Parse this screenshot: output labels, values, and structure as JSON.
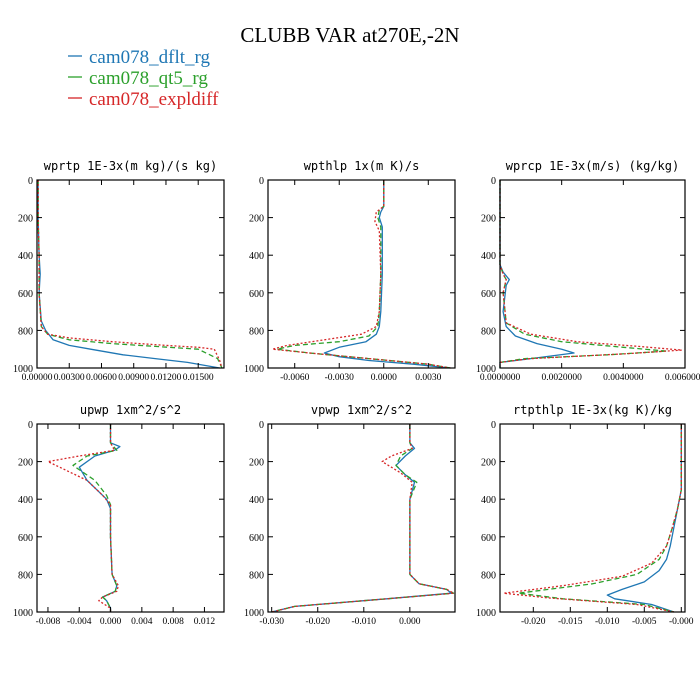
{
  "title": "CLUBB VAR at270E,-2N",
  "legend": [
    {
      "name": "cam078_dflt_rg",
      "color": "#1f77b4",
      "dash": "solid"
    },
    {
      "name": "cam078_qt5_rg",
      "color": "#2ca02c",
      "dash": "dash"
    },
    {
      "name": "cam078_expldiff",
      "color": "#d62728",
      "dash": "dot"
    }
  ],
  "chart_data": [
    {
      "type": "line",
      "title": "wprtp  1E-3x(m kg)/(s kg)",
      "xlim": [
        0.0,
        0.0174
      ],
      "ylim": [
        1000,
        0
      ],
      "xticks": [
        0,
        0.003,
        0.006,
        0.009,
        0.012,
        0.015
      ],
      "xtick_labels": [
        "0.00000",
        "0.00300",
        "0.00600",
        "0.00900",
        "0.01200",
        "0.01500"
      ],
      "yticks": [
        0,
        200,
        400,
        600,
        800,
        1000
      ],
      "ytick_labels": [
        "0",
        "200",
        "400",
        "600",
        "800",
        "1000"
      ],
      "series": [
        {
          "name": "cam078_dflt_rg",
          "x": [
            0.0001,
            0.0001,
            0.0002,
            0.0003,
            0.0002,
            0.0004,
            0.0008,
            0.0015,
            0.003,
            0.005,
            0.008,
            0.011,
            0.014,
            0.016,
            0.017
          ],
          "y": [
            0,
            200,
            400,
            500,
            600,
            750,
            800,
            850,
            880,
            900,
            930,
            950,
            970,
            990,
            1000
          ]
        },
        {
          "name": "cam078_qt5_rg",
          "x": [
            0.0001,
            0.0001,
            0.0002,
            0.0002,
            0.0002,
            0.0004,
            0.001,
            0.003,
            0.007,
            0.011,
            0.015,
            0.0168,
            0.0172
          ],
          "y": [
            0,
            200,
            400,
            500,
            600,
            780,
            820,
            850,
            870,
            885,
            900,
            950,
            1000
          ]
        },
        {
          "name": "cam078_expldiff",
          "x": [
            0.0001,
            0.0001,
            0.0002,
            0.0002,
            0.0002,
            0.0004,
            0.001,
            0.003,
            0.007,
            0.012,
            0.015,
            0.0165,
            0.017,
            0.0172
          ],
          "y": [
            0,
            200,
            400,
            500,
            600,
            780,
            820,
            840,
            860,
            880,
            890,
            900,
            960,
            1000
          ]
        }
      ]
    },
    {
      "type": "line",
      "title": "wpthlp  1x(m K)/s",
      "xlim": [
        -0.0078,
        0.0048
      ],
      "ylim": [
        1000,
        0
      ],
      "xticks": [
        -0.006,
        -0.003,
        0.0,
        0.003
      ],
      "xtick_labels": [
        "-0.0060",
        "-0.0030",
        "0.0000",
        "0.0030"
      ],
      "yticks": [
        0,
        200,
        400,
        600,
        800,
        1000
      ],
      "ytick_labels": [
        "0",
        "200",
        "400",
        "600",
        "800",
        "1000"
      ],
      "series": [
        {
          "name": "cam078_dflt_rg",
          "x": [
            0.0,
            0.0,
            -0.0002,
            -0.0003,
            -0.0001,
            -0.0001,
            -0.0002,
            -0.0003,
            -0.0005,
            -0.0012,
            -0.003,
            -0.004,
            -0.003,
            -0.001,
            0.002,
            0.0045
          ],
          "y": [
            0,
            140,
            170,
            200,
            250,
            500,
            700,
            780,
            820,
            860,
            890,
            920,
            940,
            960,
            980,
            1000
          ]
        },
        {
          "name": "cam078_qt5_rg",
          "x": [
            0.0,
            0.0,
            -0.0003,
            -0.0004,
            -0.0002,
            -0.0002,
            -0.0003,
            -0.0004,
            -0.001,
            -0.003,
            -0.006,
            -0.0072,
            -0.005,
            -0.001,
            0.003,
            0.0045
          ],
          "y": [
            0,
            140,
            160,
            200,
            250,
            500,
            700,
            780,
            830,
            860,
            880,
            900,
            920,
            950,
            980,
            1000
          ]
        },
        {
          "name": "cam078_expldiff",
          "x": [
            0.0,
            0.0,
            -0.0005,
            -0.0006,
            -0.0003,
            -0.0002,
            -0.0003,
            -0.0005,
            -0.0015,
            -0.004,
            -0.0065,
            -0.0075,
            -0.005,
            -0.001,
            0.003,
            0.0045
          ],
          "y": [
            0,
            140,
            170,
            220,
            270,
            500,
            700,
            780,
            820,
            850,
            880,
            900,
            920,
            950,
            980,
            1000
          ]
        }
      ]
    },
    {
      "type": "line",
      "title": "wprcp  1E-3x(m/s) (kg/kg)",
      "xlim": [
        0.0,
        0.006
      ],
      "ylim": [
        1000,
        0
      ],
      "xticks": [
        0.0,
        0.002,
        0.004,
        0.006
      ],
      "xtick_labels": [
        "0.0000000",
        "0.0020000",
        "0.0040000",
        "0.0060000"
      ],
      "yticks": [
        0,
        200,
        400,
        600,
        800,
        1000
      ],
      "ytick_labels": [
        "0",
        "200",
        "400",
        "600",
        "800",
        "1000"
      ],
      "series": [
        {
          "name": "cam078_dflt_rg",
          "x": [
            0.0,
            0.0,
            0.0001,
            0.0003,
            0.0002,
            0.0001,
            0.0002,
            0.0005,
            0.0012,
            0.002,
            0.0024,
            0.001,
            0.0,
            0.0
          ],
          "y": [
            0,
            450,
            490,
            530,
            560,
            700,
            780,
            830,
            870,
            900,
            920,
            950,
            970,
            1000
          ]
        },
        {
          "name": "cam078_qt5_rg",
          "x": [
            0.0,
            0.0,
            0.0001,
            0.0002,
            0.0001,
            0.0002,
            0.0008,
            0.002,
            0.004,
            0.0054,
            0.0035,
            0.0008,
            0.0,
            0.0
          ],
          "y": [
            0,
            450,
            500,
            530,
            600,
            760,
            820,
            860,
            890,
            910,
            930,
            950,
            970,
            1000
          ]
        },
        {
          "name": "cam078_expldiff",
          "x": [
            0.0,
            0.0,
            0.0001,
            0.0002,
            0.0001,
            0.0002,
            0.001,
            0.0025,
            0.0045,
            0.0059,
            0.004,
            0.001,
            0.0,
            0.0
          ],
          "y": [
            0,
            450,
            500,
            530,
            600,
            760,
            820,
            860,
            885,
            905,
            925,
            950,
            970,
            1000
          ]
        }
      ]
    },
    {
      "type": "line",
      "title": "upwp  1xm^2/s^2",
      "xlim": [
        -0.0094,
        0.0145
      ],
      "ylim": [
        1000,
        0
      ],
      "xticks": [
        -0.008,
        -0.004,
        0.0,
        0.004,
        0.008,
        0.012
      ],
      "xtick_labels": [
        "-0.008",
        "-0.004",
        "0.000",
        "0.004",
        "0.008",
        "0.012"
      ],
      "yticks": [
        0,
        200,
        400,
        600,
        800,
        1000
      ],
      "ytick_labels": [
        "0",
        "200",
        "400",
        "600",
        "800",
        "1000"
      ],
      "series": [
        {
          "name": "cam078_dflt_rg",
          "x": [
            0.0,
            0.0,
            0.0012,
            0.0005,
            -0.002,
            -0.004,
            -0.003,
            -0.0015,
            -0.0005,
            0.0,
            0.0,
            0.0002,
            0.0008,
            0.0006,
            -0.001,
            -0.0005,
            0.0,
            0.0
          ],
          "y": [
            0,
            100,
            120,
            140,
            170,
            230,
            300,
            360,
            400,
            450,
            600,
            800,
            860,
            890,
            920,
            940,
            980,
            1000
          ]
        },
        {
          "name": "cam078_qt5_rg",
          "x": [
            0.0,
            0.0,
            0.0008,
            -0.003,
            -0.0048,
            -0.002,
            -0.0005,
            0.0,
            0.0,
            0.0002,
            0.0008,
            0.0006,
            -0.001,
            -0.0005,
            0.0,
            0.0
          ],
          "y": [
            0,
            100,
            140,
            170,
            220,
            300,
            380,
            430,
            600,
            800,
            860,
            890,
            920,
            940,
            980,
            1000
          ]
        },
        {
          "name": "cam078_expldiff",
          "x": [
            0.0,
            0.0,
            0.0005,
            -0.004,
            -0.008,
            -0.006,
            -0.003,
            -0.001,
            0.0,
            0.0,
            0.0002,
            0.001,
            0.0008,
            -0.001,
            -0.0015,
            0.0,
            0.0
          ],
          "y": [
            0,
            100,
            140,
            170,
            200,
            240,
            300,
            380,
            430,
            600,
            800,
            860,
            890,
            920,
            940,
            980,
            1000
          ]
        }
      ]
    },
    {
      "type": "line",
      "title": "vpwp  1xm^2/s^2",
      "xlim": [
        -0.0308,
        0.0098
      ],
      "ylim": [
        1000,
        0
      ],
      "xticks": [
        -0.03,
        -0.02,
        -0.01,
        0.0
      ],
      "xtick_labels": [
        "-0.030",
        "-0.020",
        "-0.010",
        "0.000"
      ],
      "yticks": [
        0,
        200,
        400,
        600,
        800,
        1000
      ],
      "ytick_labels": [
        "0",
        "200",
        "400",
        "600",
        "800",
        "1000"
      ],
      "series": [
        {
          "name": "cam078_dflt_rg",
          "x": [
            0.0,
            0.0,
            0.001,
            -0.001,
            -0.003,
            -0.001,
            0.001,
            0.0,
            0.0,
            0.0,
            0.002,
            0.008,
            0.009,
            -0.005,
            -0.025,
            -0.03
          ],
          "y": [
            0,
            100,
            130,
            170,
            220,
            270,
            310,
            400,
            600,
            800,
            850,
            880,
            900,
            930,
            970,
            1000
          ]
        },
        {
          "name": "cam078_qt5_rg",
          "x": [
            0.0,
            0.0,
            0.0005,
            -0.002,
            -0.003,
            -0.001,
            0.0015,
            0.0,
            0.0,
            0.0,
            0.002,
            0.008,
            0.0095,
            -0.005,
            -0.025,
            -0.03
          ],
          "y": [
            0,
            100,
            130,
            170,
            220,
            270,
            310,
            400,
            600,
            800,
            850,
            880,
            900,
            930,
            970,
            1000
          ]
        },
        {
          "name": "cam078_expldiff",
          "x": [
            0.0,
            0.0,
            0.0005,
            -0.004,
            -0.006,
            -0.002,
            0.0005,
            0.0,
            0.0,
            0.0,
            0.002,
            0.008,
            0.0095,
            -0.005,
            -0.025,
            -0.03
          ],
          "y": [
            0,
            100,
            130,
            170,
            200,
            260,
            310,
            400,
            600,
            800,
            850,
            880,
            900,
            930,
            970,
            1000
          ]
        }
      ]
    },
    {
      "type": "line",
      "title": "rtpthlp  1E-3x(kg K)/kg",
      "xlim": [
        -0.0245,
        0.0005
      ],
      "ylim": [
        1000,
        0
      ],
      "xticks": [
        -0.02,
        -0.015,
        -0.01,
        -0.005,
        0.0
      ],
      "xtick_labels": [
        "-0.020",
        "-0.015",
        "-0.010",
        "-0.005",
        "-0.000"
      ],
      "yticks": [
        0,
        200,
        400,
        600,
        800,
        1000
      ],
      "ytick_labels": [
        "0",
        "200",
        "400",
        "600",
        "800",
        "1000"
      ],
      "series": [
        {
          "name": "cam078_dflt_rg",
          "x": [
            0.0,
            0.0,
            -0.0005,
            -0.001,
            -0.0015,
            -0.002,
            -0.003,
            -0.005,
            -0.008,
            -0.01,
            -0.009,
            -0.004,
            -0.001
          ],
          "y": [
            0,
            350,
            450,
            550,
            650,
            720,
            780,
            840,
            880,
            910,
            930,
            960,
            1000
          ]
        },
        {
          "name": "cam078_qt5_rg",
          "x": [
            0.0,
            0.0,
            -0.0005,
            -0.0012,
            -0.002,
            -0.003,
            -0.006,
            -0.012,
            -0.022,
            -0.016,
            -0.005,
            -0.001
          ],
          "y": [
            0,
            350,
            450,
            550,
            650,
            720,
            800,
            850,
            900,
            930,
            960,
            1000
          ]
        },
        {
          "name": "cam078_expldiff",
          "x": [
            0.0,
            0.0,
            -0.0005,
            -0.0012,
            -0.002,
            -0.004,
            -0.008,
            -0.016,
            -0.024,
            -0.018,
            -0.006,
            -0.001
          ],
          "y": [
            0,
            350,
            450,
            550,
            650,
            740,
            810,
            860,
            900,
            925,
            960,
            1000
          ]
        }
      ]
    }
  ]
}
